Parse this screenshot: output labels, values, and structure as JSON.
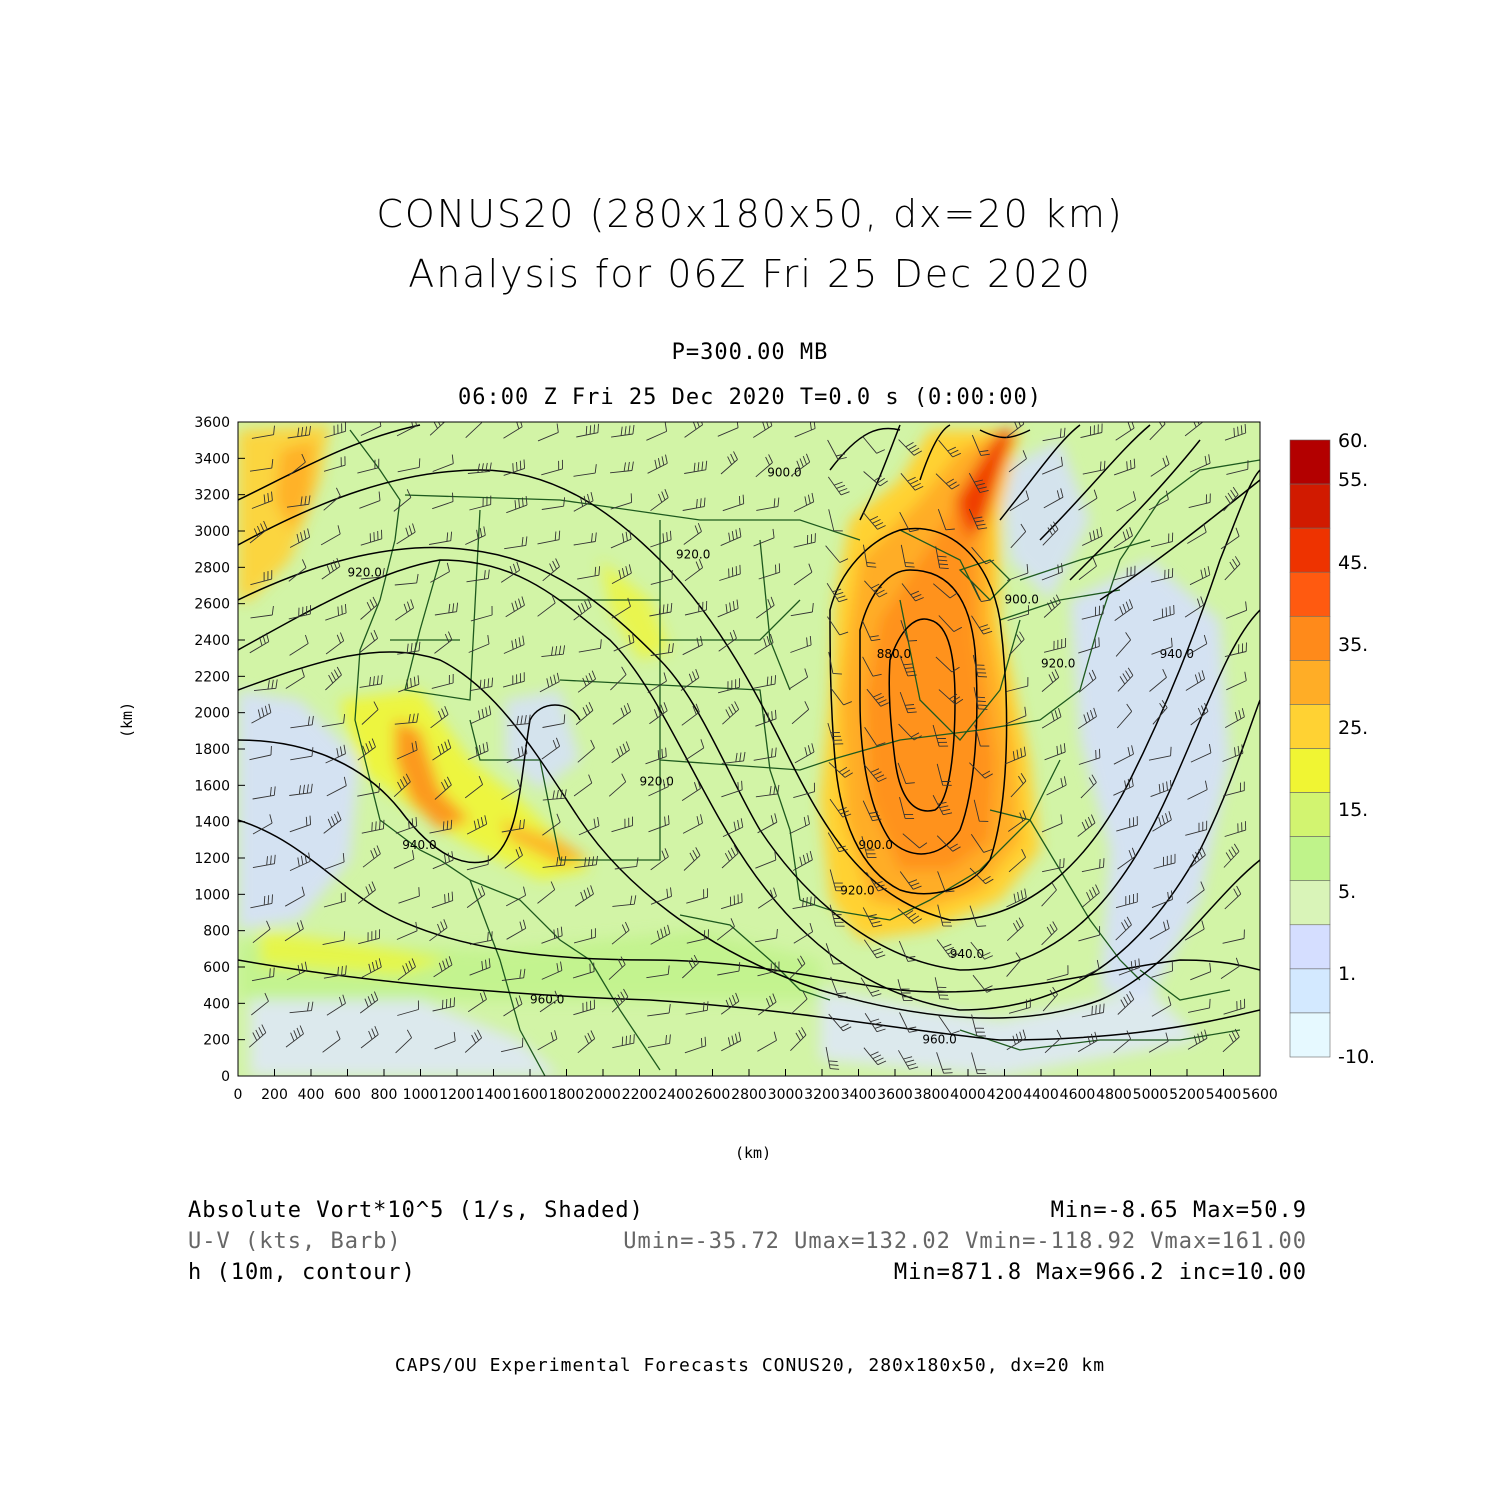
{
  "title": {
    "line1": "CONUS20 (280x180x50, dx=20 km)",
    "line2": "Analysis for 06Z Fri 25 Dec 2020"
  },
  "level": "P=300.00 MB",
  "time_line": "06:00 Z Fri 25 Dec 2020    T=0.0 s (0:00:00)",
  "axes": {
    "xlabel": "(km)",
    "ylabel": "(km)",
    "x_ticks": [
      0,
      200,
      400,
      600,
      800,
      1000,
      1200,
      1400,
      1600,
      1800,
      2000,
      2200,
      2400,
      2600,
      2800,
      3000,
      3200,
      3400,
      3600,
      3800,
      4000,
      4200,
      4400,
      4600,
      4800,
      5000,
      5200,
      5400,
      5600
    ],
    "y_ticks": [
      0,
      200,
      400,
      600,
      800,
      1000,
      1200,
      1400,
      1600,
      1800,
      2000,
      2200,
      2400,
      2600,
      2800,
      3000,
      3200,
      3400,
      3600
    ],
    "xlim": [
      0,
      5600
    ],
    "ylim": [
      0,
      3600
    ]
  },
  "colorbar": {
    "labels": [
      "60.",
      "55.",
      "45.",
      "35.",
      "25.",
      "15.",
      "5.",
      "1.",
      "-10."
    ],
    "colors": [
      "#b30000",
      "#d11a00",
      "#ee3300",
      "#ff5a10",
      "#ff8a1a",
      "#ffad26",
      "#ffd233",
      "#f0f533",
      "#d2f470",
      "#bff38a",
      "#d9f4b8",
      "#d5deff",
      "#d3e9ff",
      "#e6f9ff"
    ]
  },
  "contours": [
    {
      "label": "920.0",
      "x": 600,
      "y": 2750
    },
    {
      "label": "920.0",
      "x": 2400,
      "y": 2850
    },
    {
      "label": "900.0",
      "x": 2900,
      "y": 3300
    },
    {
      "label": "880.0",
      "x": 3500,
      "y": 2300
    },
    {
      "label": "900.0",
      "x": 3400,
      "y": 1250
    },
    {
      "label": "920.0",
      "x": 3300,
      "y": 1000
    },
    {
      "label": "920.0",
      "x": 2200,
      "y": 1600
    },
    {
      "label": "940.0",
      "x": 900,
      "y": 1250
    },
    {
      "label": "940.0",
      "x": 3900,
      "y": 650
    },
    {
      "label": "960.0",
      "x": 1600,
      "y": 400
    },
    {
      "label": "960.0",
      "x": 3750,
      "y": 180
    },
    {
      "label": "900.0",
      "x": 4200,
      "y": 2600
    },
    {
      "label": "920.0",
      "x": 4400,
      "y": 2250
    },
    {
      "label": "940.0",
      "x": 5050,
      "y": 2300
    }
  ],
  "legend": {
    "row1_left": "Absolute Vort*10^5 (1/s, Shaded)",
    "row1_right": "Min=-8.65 Max=50.9",
    "row2_left": "U-V (kts, Barb)",
    "row2_right": "Umin=-35.72 Umax=132.02 Vmin=-118.92 Vmax=161.00",
    "row3_left": "h (10m, contour)",
    "row3_right": "Min=871.8 Max=966.2 inc=10.00"
  },
  "credit": "CAPS/OU Experimental Forecasts  CONUS20, 280x180x50, dx=20 km"
}
